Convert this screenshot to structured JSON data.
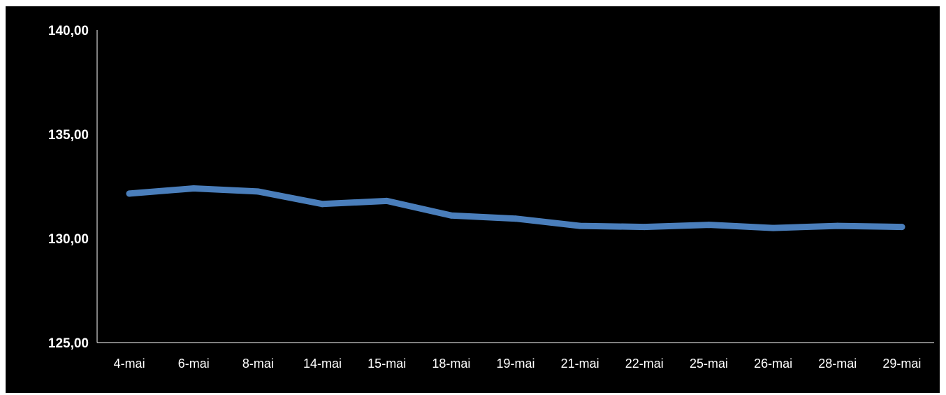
{
  "chart_data": {
    "type": "line",
    "title": "",
    "xlabel": "",
    "ylabel": "",
    "ylim": [
      125,
      140
    ],
    "y_ticks": [
      "125,00",
      "130,00",
      "135,00",
      "140,00"
    ],
    "y_tick_values": [
      125,
      130,
      135,
      140
    ],
    "categories": [
      "4-mai",
      "6-mai",
      "8-mai",
      "14-mai",
      "15-mai",
      "18-mai",
      "19-mai",
      "21-mai",
      "22-mai",
      "25-mai",
      "26-mai",
      "28-mai",
      "29-mai"
    ],
    "series": [
      {
        "color": "#4a7ebb",
        "values": [
          132.15,
          132.4,
          132.25,
          131.65,
          131.8,
          131.1,
          130.95,
          130.6,
          130.55,
          130.65,
          130.5,
          130.6,
          130.55
        ]
      }
    ],
    "grid": false,
    "legend": "none",
    "background": "#000000",
    "axis_color": "#ffffff"
  }
}
